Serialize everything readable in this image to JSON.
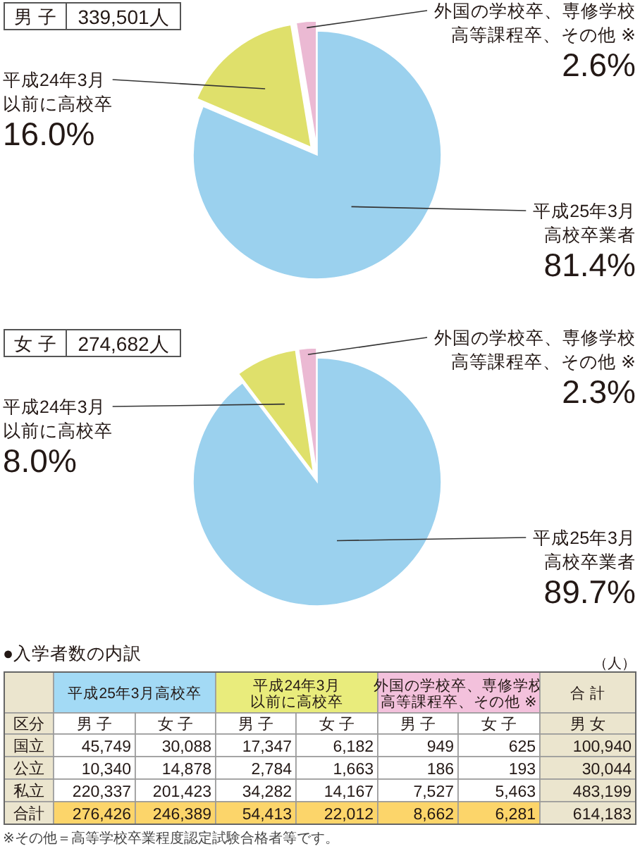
{
  "chart_data": [
    {
      "type": "pie",
      "title": "男 子",
      "subtitle": "339,501人",
      "categories": [
        "平成25年3月高校卒業者",
        "平成24年3月以前に高校卒",
        "外国の学校卒、専修学校高等課程卒、その他 ※"
      ],
      "values": [
        81.4,
        16.0,
        2.6
      ],
      "value_labels": [
        "81.4%",
        "16.0%",
        "2.6%"
      ],
      "colors": [
        "#9bd1ee",
        "#dfe06b",
        "#ebb9d3"
      ]
    },
    {
      "type": "pie",
      "title": "女 子",
      "subtitle": "274,682人",
      "categories": [
        "平成25年3月高校卒業者",
        "平成24年3月以前に高校卒",
        "外国の学校卒、専修学校高等課程卒、その他 ※"
      ],
      "values": [
        89.7,
        8.0,
        2.3
      ],
      "value_labels": [
        "89.7%",
        "8.0%",
        "2.3%"
      ],
      "colors": [
        "#9bd1ee",
        "#dfe06b",
        "#ebb9d3"
      ]
    },
    {
      "type": "other",
      "title": "●入学者数の内訳",
      "subtitle": "（人）",
      "ylabel": "区分",
      "categories": [
        "男 子",
        "女 子",
        "男 子",
        "女 子",
        "男 子",
        "女 子",
        "男 女"
      ],
      "y_categories": [
        "国立",
        "公立",
        "私立",
        "合計"
      ],
      "cell_labels": [
        [
          "45,749",
          "30,088",
          "17,347",
          "6,182",
          "949",
          "625",
          "100,940"
        ],
        [
          "10,340",
          "14,878",
          "2,784",
          "1,663",
          "186",
          "193",
          "30,044"
        ],
        [
          "220,337",
          "201,423",
          "34,282",
          "14,167",
          "7,527",
          "5,463",
          "483,199"
        ],
        [
          "276,426",
          "246,389",
          "54,413",
          "22,012",
          "8,662",
          "6,281",
          "614,183"
        ]
      ],
      "annotations": [
        "平成25年3月高校卒",
        "平成24年3月以前に高校卒",
        "外国の学校卒、専修学校高等課程卒、その他 ※",
        "合 計",
        "※その他＝高等学校卒業程度認定試験合格者等です。"
      ]
    }
  ]
}
